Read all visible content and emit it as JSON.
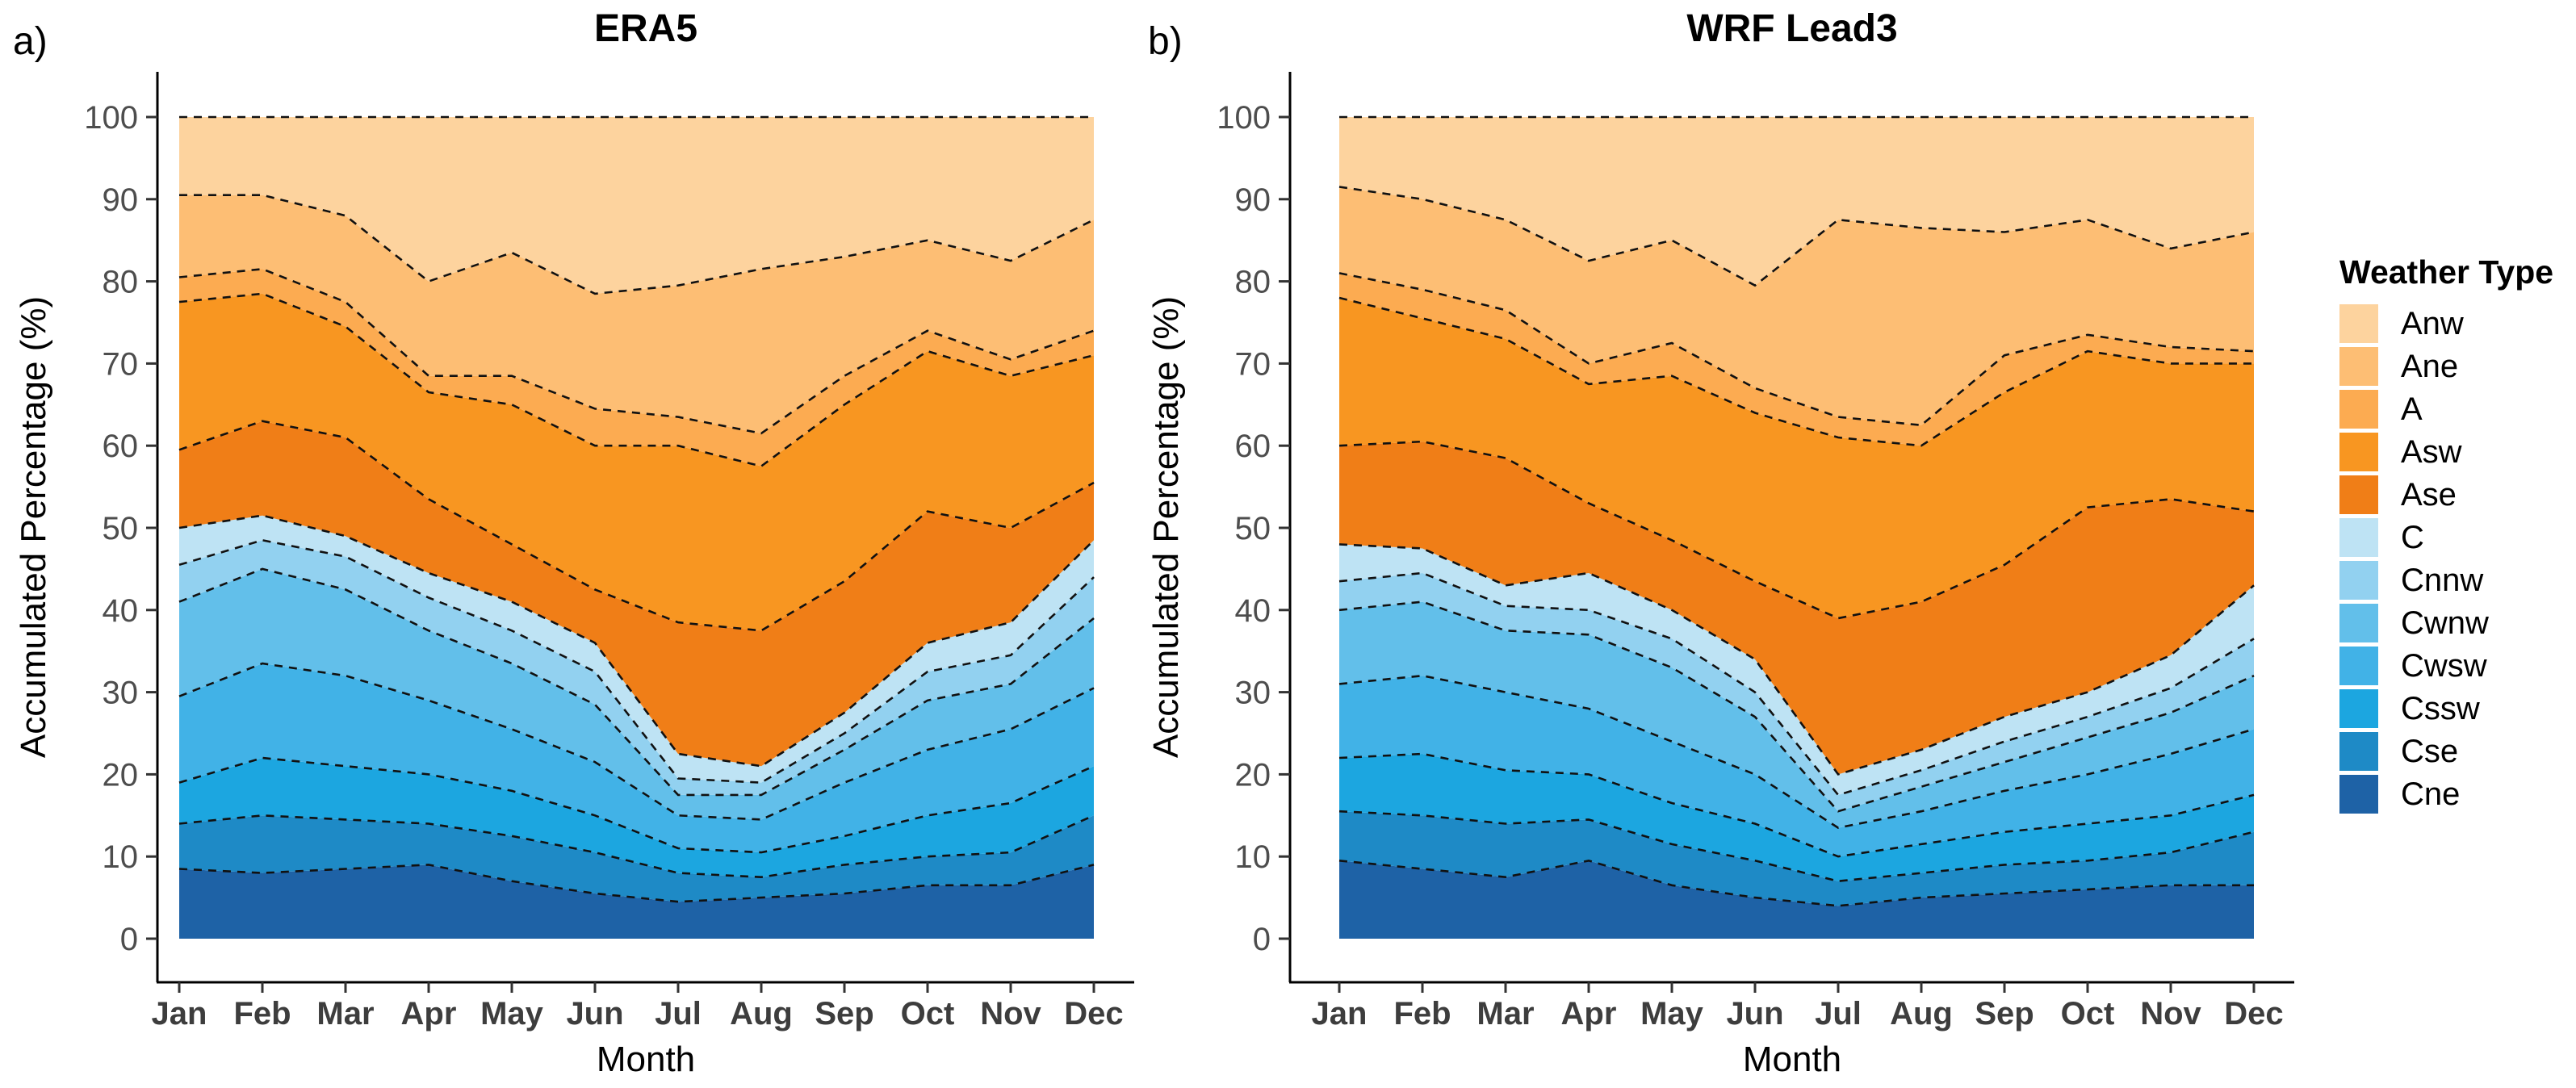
{
  "panels": [
    {
      "key": "a",
      "label": "a)",
      "title": "ERA5"
    },
    {
      "key": "b",
      "label": "b)",
      "title": "WRF Lead3"
    }
  ],
  "axis": {
    "x_label": "Month",
    "y_label": "Accumulated Percentage (%)",
    "months": [
      "Jan",
      "Feb",
      "Mar",
      "Apr",
      "May",
      "Jun",
      "Jul",
      "Aug",
      "Sep",
      "Oct",
      "Nov",
      "Dec"
    ],
    "y_ticks": [
      "0",
      "10",
      "20",
      "30",
      "40",
      "50",
      "60",
      "70",
      "80",
      "90",
      "100"
    ]
  },
  "legend": {
    "title": "Weather Type",
    "items_top_to_bottom": [
      "Anw",
      "Ane",
      "A",
      "Asw",
      "Ase",
      "C",
      "Cnnw",
      "Cwnw",
      "Cwsw",
      "Cssw",
      "Cse",
      "Cne"
    ]
  },
  "colors": {
    "Anw": "#FDD39E",
    "Ane": "#FDBE74",
    "A": "#FCAB51",
    "Asw": "#F89621",
    "Ase": "#F07E17",
    "C": "#BEE3F4",
    "Cnnw": "#92D1F0",
    "Cwnw": "#62BFEA",
    "Cwsw": "#41B2E7",
    "Cssw": "#1CA6E0",
    "Cse": "#1E8AC6",
    "Cne": "#1E62A6",
    "boundary_line": "#111111",
    "axis_line": "#000000"
  },
  "chart_data": [
    {
      "type": "area",
      "stacked": true,
      "panel": "a)",
      "title": "ERA5",
      "xlabel": "Month",
      "ylabel": "Accumulated Percentage (%)",
      "ylim": [
        0,
        100
      ],
      "grid": false,
      "legend_position": "right-of-figure",
      "boundary_style": "dashed-black",
      "categories": [
        "Jan",
        "Feb",
        "Mar",
        "Apr",
        "May",
        "Jun",
        "Jul",
        "Aug",
        "Sep",
        "Oct",
        "Nov",
        "Dec"
      ],
      "series_note": "values are percentage widths per month, stacking order bottom-to-top",
      "series": [
        {
          "name": "Cne",
          "values": [
            8.5,
            8,
            8.5,
            9,
            7,
            5.5,
            4.5,
            5,
            5.5,
            6.5,
            6.5,
            9
          ]
        },
        {
          "name": "Cse",
          "values": [
            5.5,
            7,
            6,
            5,
            5.5,
            5,
            3.5,
            2.5,
            3.5,
            3.5,
            4,
            6
          ]
        },
        {
          "name": "Cssw",
          "values": [
            5,
            7,
            6.5,
            6,
            5.5,
            4.5,
            3,
            3,
            3.5,
            5,
            6,
            6
          ]
        },
        {
          "name": "Cwsw",
          "values": [
            10.5,
            11.5,
            11,
            9,
            7.5,
            6.5,
            4,
            4,
            6.5,
            8,
            9,
            9.5
          ]
        },
        {
          "name": "Cwnw",
          "values": [
            11.5,
            11.5,
            10.5,
            8.5,
            8,
            7,
            2.5,
            3,
            4,
            6,
            5.5,
            8.5
          ]
        },
        {
          "name": "Cnnw",
          "values": [
            4.5,
            3.5,
            4,
            4,
            4,
            4,
            2,
            1.5,
            2,
            3.5,
            3.5,
            5
          ]
        },
        {
          "name": "C",
          "values": [
            4.5,
            3,
            2.5,
            3,
            3.5,
            3.5,
            3,
            2,
            2.5,
            3.5,
            4,
            4.5
          ]
        },
        {
          "name": "Ase",
          "values": [
            9.5,
            11.5,
            12,
            9,
            7,
            6.5,
            16,
            16.5,
            16,
            16,
            11.5,
            7
          ]
        },
        {
          "name": "Asw",
          "values": [
            18,
            15.5,
            13.5,
            13,
            17,
            17.5,
            21.5,
            20,
            21.5,
            19.5,
            18.5,
            15.5
          ]
        },
        {
          "name": "A",
          "values": [
            3,
            3,
            3,
            2,
            3.5,
            4.5,
            3.5,
            4,
            3.5,
            2.5,
            2,
            3
          ]
        },
        {
          "name": "Ane",
          "values": [
            10,
            9,
            10.5,
            11.5,
            15,
            14,
            16,
            20,
            14.5,
            11,
            12,
            13.5
          ]
        },
        {
          "name": "Anw",
          "values": [
            9.5,
            9.5,
            12,
            20,
            16.5,
            21.5,
            20.5,
            18.5,
            17,
            15,
            17.5,
            12.5
          ]
        }
      ]
    },
    {
      "type": "area",
      "stacked": true,
      "panel": "b)",
      "title": "WRF Lead3",
      "xlabel": "Month",
      "ylabel": "Accumulated Percentage (%)",
      "ylim": [
        0,
        100
      ],
      "grid": false,
      "legend_position": "right-of-figure",
      "boundary_style": "dashed-black",
      "categories": [
        "Jan",
        "Feb",
        "Mar",
        "Apr",
        "May",
        "Jun",
        "Jul",
        "Aug",
        "Sep",
        "Oct",
        "Nov",
        "Dec"
      ],
      "series_note": "values are percentage widths per month, stacking order bottom-to-top",
      "series": [
        {
          "name": "Cne",
          "values": [
            9.5,
            8.5,
            7.5,
            9.5,
            6.5,
            5,
            4,
            5,
            5.5,
            6,
            6.5,
            6.5
          ]
        },
        {
          "name": "Cse",
          "values": [
            6,
            6.5,
            6.5,
            5,
            5,
            4.5,
            3,
            3,
            3.5,
            3.5,
            4,
            6.5
          ]
        },
        {
          "name": "Cssw",
          "values": [
            6.5,
            7.5,
            6.5,
            5.5,
            5,
            4.5,
            3,
            3.5,
            4,
            4.5,
            4.5,
            4.5
          ]
        },
        {
          "name": "Cwsw",
          "values": [
            9,
            9.5,
            9.5,
            8,
            7.5,
            6,
            3.5,
            4,
            5,
            6,
            7.5,
            8
          ]
        },
        {
          "name": "Cwnw",
          "values": [
            9,
            9,
            7.5,
            9,
            9,
            7,
            2,
            3,
            3.5,
            4.5,
            5,
            6.5
          ]
        },
        {
          "name": "Cnnw",
          "values": [
            3.5,
            3.5,
            3,
            3,
            3.5,
            3,
            2,
            2,
            2.5,
            2.5,
            3,
            4.5
          ]
        },
        {
          "name": "C",
          "values": [
            4.5,
            3,
            2.5,
            4.5,
            3.5,
            4,
            2.5,
            2.5,
            3,
            3,
            4,
            6.5
          ]
        },
        {
          "name": "Ase",
          "values": [
            12,
            13,
            15.5,
            8.5,
            8.5,
            9.5,
            19,
            18,
            18.5,
            22.5,
            19,
            9
          ]
        },
        {
          "name": "Asw",
          "values": [
            18,
            15,
            14.5,
            14.5,
            20,
            20.5,
            22,
            19,
            21,
            19,
            16.5,
            18
          ]
        },
        {
          "name": "A",
          "values": [
            3,
            3.5,
            3.5,
            2.5,
            4,
            3,
            2.5,
            2.5,
            4.5,
            2,
            2,
            1.5
          ]
        },
        {
          "name": "Ane",
          "values": [
            10.5,
            11,
            11,
            12.5,
            12.5,
            12.5,
            24,
            24,
            15,
            14,
            12,
            14.5
          ]
        },
        {
          "name": "Anw",
          "values": [
            8.5,
            10,
            12.5,
            17.5,
            15,
            20.5,
            12.5,
            13.5,
            14,
            12.5,
            16,
            14
          ]
        }
      ]
    }
  ]
}
